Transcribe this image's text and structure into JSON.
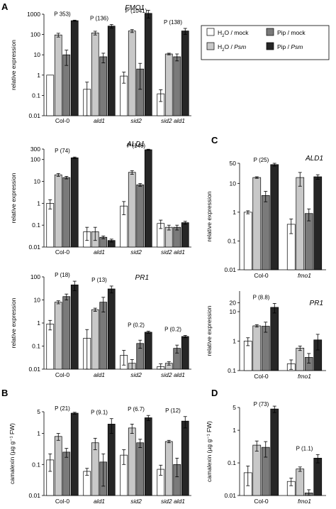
{
  "colors": {
    "H2O_mock": "#ffffff",
    "H2O_Psm": "#c8c8c8",
    "Pip_mock": "#7a7a7a",
    "Pip_Psm": "#262626",
    "stroke": "#000000"
  },
  "legend": {
    "placement": "right of panel A",
    "entries": [
      {
        "key": "H2O_mock",
        "prefix": "H",
        "sub": "2",
        "mid": "O / ",
        "suffix": "mock",
        "italic": false
      },
      {
        "key": "H2O_Psm",
        "prefix": "H",
        "sub": "2",
        "mid": "O / ",
        "suffix": "Psm",
        "italic": true
      },
      {
        "key": "Pip_mock",
        "prefix": "Pip / ",
        "sub": "",
        "mid": "",
        "suffix": "mock",
        "italic": false
      },
      {
        "key": "Pip_Psm",
        "prefix": "Pip / ",
        "sub": "",
        "mid": "",
        "suffix": "Psm",
        "italic": true
      }
    ]
  },
  "chart_data": [
    {
      "type": "bar",
      "letter": "A",
      "gene": "FMO1",
      "ylabel": "relative expression",
      "yscale": "log",
      "ylim": [
        0.01,
        1000
      ],
      "yticks": [
        "1000",
        "100",
        "10",
        "1",
        "0.1",
        "0.01"
      ],
      "categories": [
        "Col-0",
        "ald1",
        "sid2",
        "sid2 ald1"
      ],
      "italic_categories": [
        false,
        true,
        true,
        true
      ],
      "pvalues": [
        "P 353)",
        "P (136)",
        "P (1041)",
        "P (138)"
      ],
      "series": [
        {
          "key": "H2O_mock",
          "values": [
            1,
            0.2,
            0.9,
            0.12
          ],
          "errors": [
            0,
            0.25,
            0.5,
            0.07
          ]
        },
        {
          "key": "H2O_Psm",
          "values": [
            95,
            120,
            150,
            11
          ],
          "errors": [
            20,
            25,
            25,
            1
          ]
        },
        {
          "key": "Pip_mock",
          "values": [
            10,
            8,
            2,
            8
          ],
          "errors": [
            7,
            4,
            1.8,
            3
          ]
        },
        {
          "key": "Pip_Psm",
          "values": [
            480,
            260,
            1100,
            150
          ],
          "errors": [
            30,
            50,
            450,
            50
          ]
        }
      ]
    },
    {
      "type": "bar",
      "letter": "",
      "gene": "ALD1",
      "ylabel": "relative expression",
      "yscale": "log",
      "ylim": [
        0.01,
        300
      ],
      "yticks": [
        "300",
        "100",
        "10",
        "1",
        "0.1",
        "0.01"
      ],
      "categories": [
        "Col-0",
        "ald1",
        "sid2",
        "sid2 ald1"
      ],
      "italic_categories": [
        false,
        true,
        true,
        true
      ],
      "pvalues": [
        "P (74)",
        "",
        "P (146)",
        ""
      ],
      "series": [
        {
          "key": "H2O_mock",
          "values": [
            1,
            0.05,
            0.75,
            0.12
          ],
          "errors": [
            0.45,
            0.03,
            0.45,
            0.05
          ]
        },
        {
          "key": "H2O_Psm",
          "values": [
            20,
            0.05,
            26,
            0.08
          ],
          "errors": [
            3,
            0.03,
            5,
            0.02
          ]
        },
        {
          "key": "Pip_mock",
          "values": [
            15,
            0.028,
            7,
            0.08
          ],
          "errors": [
            2,
            0.004,
            1,
            0.02
          ]
        },
        {
          "key": "Pip_Psm",
          "values": [
            120,
            0.02,
            280,
            0.13
          ],
          "errors": [
            10,
            0.003,
            15,
            0.02
          ]
        }
      ]
    },
    {
      "type": "bar",
      "letter": "",
      "gene": "PR1",
      "ylabel": "relative expression",
      "yscale": "log",
      "ylim": [
        0.01,
        100
      ],
      "yticks": [
        "100",
        "10",
        "1",
        "0.1",
        "0.01"
      ],
      "categories": [
        "Col-0",
        "ald1",
        "sid2",
        "sid2 ald1"
      ],
      "italic_categories": [
        false,
        true,
        true,
        true
      ],
      "pvalues": [
        "P (18)",
        "P (13)",
        "P (0.2)",
        "P (0.2)"
      ],
      "series": [
        {
          "key": "H2O_mock",
          "values": [
            0.9,
            0.22,
            0.04,
            0.013
          ],
          "errors": [
            0.4,
            0.3,
            0.025,
            0.004
          ]
        },
        {
          "key": "H2O_Psm",
          "values": [
            8,
            3.8,
            0.018,
            0.018
          ],
          "errors": [
            1.2,
            0.6,
            0.008,
            0.003
          ]
        },
        {
          "key": "Pip_mock",
          "values": [
            14,
            8,
            0.13,
            0.08
          ],
          "errors": [
            4,
            5,
            0.05,
            0.03
          ]
        },
        {
          "key": "Pip_Psm",
          "values": [
            45,
            30,
            0.4,
            0.26
          ],
          "errors": [
            20,
            10,
            0.04,
            0.03
          ]
        }
      ]
    },
    {
      "type": "bar",
      "letter": "B",
      "gene": "",
      "ylabel": "camalexin (µg g⁻¹ FW)",
      "yscale": "log",
      "ylim": [
        0.01,
        5
      ],
      "yticks": [
        "5",
        "1",
        "0.1",
        "0.01"
      ],
      "categories": [
        "Col-0",
        "ald1",
        "sid2",
        "sid2 ald1"
      ],
      "italic_categories": [
        false,
        true,
        true,
        true
      ],
      "pvalues": [
        "P (21)",
        "P (9.1)",
        "P (6.7)",
        "P (12)"
      ],
      "series": [
        {
          "key": "H2O_mock",
          "values": [
            0.14,
            0.06,
            0.2,
            0.07
          ],
          "errors": [
            0.08,
            0.015,
            0.1,
            0.025
          ]
        },
        {
          "key": "H2O_Psm",
          "values": [
            0.8,
            0.5,
            1.5,
            0.55
          ],
          "errors": [
            0.2,
            0.2,
            0.5,
            0.05
          ]
        },
        {
          "key": "Pip_mock",
          "values": [
            0.25,
            0.12,
            0.5,
            0.1
          ],
          "errors": [
            0.08,
            0.1,
            0.15,
            0.06
          ]
        },
        {
          "key": "Pip_Psm",
          "values": [
            4.5,
            2,
            3.2,
            2.5
          ],
          "errors": [
            0.3,
            1,
            0.6,
            1
          ]
        }
      ]
    },
    {
      "type": "bar",
      "letter": "C",
      "gene": "ALD1",
      "ylabel": "relative expression",
      "yscale": "log",
      "ylim": [
        0.01,
        50
      ],
      "yticks": [
        "50",
        "10",
        "1",
        "0.1",
        "0.01"
      ],
      "categories": [
        "Col-0",
        "fmo1"
      ],
      "italic_categories": [
        false,
        true
      ],
      "pvalues": [
        "P (25)",
        ""
      ],
      "series": [
        {
          "key": "H2O_mock",
          "values": [
            1,
            0.38
          ],
          "errors": [
            0.12,
            0.2
          ]
        },
        {
          "key": "H2O_Psm",
          "values": [
            16,
            16
          ],
          "errors": [
            1,
            8
          ]
        },
        {
          "key": "Pip_mock",
          "values": [
            3.8,
            0.9
          ],
          "errors": [
            1.5,
            0.4
          ]
        },
        {
          "key": "Pip_Psm",
          "values": [
            45,
            17
          ],
          "errors": [
            5,
            3
          ]
        }
      ]
    },
    {
      "type": "bar",
      "letter": "",
      "gene": "PR1",
      "ylabel": "relative expression",
      "yscale": "log",
      "ylim": [
        0.1,
        50
      ],
      "yticks": [
        "20",
        "10",
        "1",
        "0.1"
      ],
      "categories": [
        "Col-0",
        "fmo1"
      ],
      "italic_categories": [
        false,
        true
      ],
      "pvalues": [
        "P (8.8)",
        ""
      ],
      "series": [
        {
          "key": "H2O_mock",
          "values": [
            1,
            0.17
          ],
          "errors": [
            0.3,
            0.06
          ]
        },
        {
          "key": "H2O_Psm",
          "values": [
            3.3,
            0.58
          ],
          "errors": [
            0.3,
            0.1
          ]
        },
        {
          "key": "Pip_mock",
          "values": [
            3.2,
            0.28
          ],
          "errors": [
            1.2,
            0.1
          ]
        },
        {
          "key": "Pip_Psm",
          "values": [
            14,
            1.1
          ],
          "errors": [
            5,
            0.6
          ]
        }
      ]
    },
    {
      "type": "bar",
      "letter": "D",
      "gene": "",
      "ylabel": "camalexin (µg g⁻¹ FW)",
      "yscale": "log",
      "ylim": [
        0.01,
        5
      ],
      "yticks": [
        "5",
        "1",
        "0.1",
        "0.01"
      ],
      "categories": [
        "Col-0",
        "fmo1"
      ],
      "italic_categories": [
        false,
        true
      ],
      "pvalues": [
        "P (73)",
        "P (1.1)"
      ],
      "series": [
        {
          "key": "H2O_mock",
          "values": [
            0.05,
            0.027
          ],
          "errors": [
            0.03,
            0.007
          ]
        },
        {
          "key": "H2O_Psm",
          "values": [
            0.35,
            0.065
          ],
          "errors": [
            0.12,
            0.01
          ]
        },
        {
          "key": "Pip_mock",
          "values": [
            0.3,
            0.012
          ],
          "errors": [
            0.15,
            0.003
          ]
        },
        {
          "key": "Pip_Psm",
          "values": [
            4.5,
            0.14
          ],
          "errors": [
            1,
            0.04
          ]
        }
      ]
    }
  ]
}
